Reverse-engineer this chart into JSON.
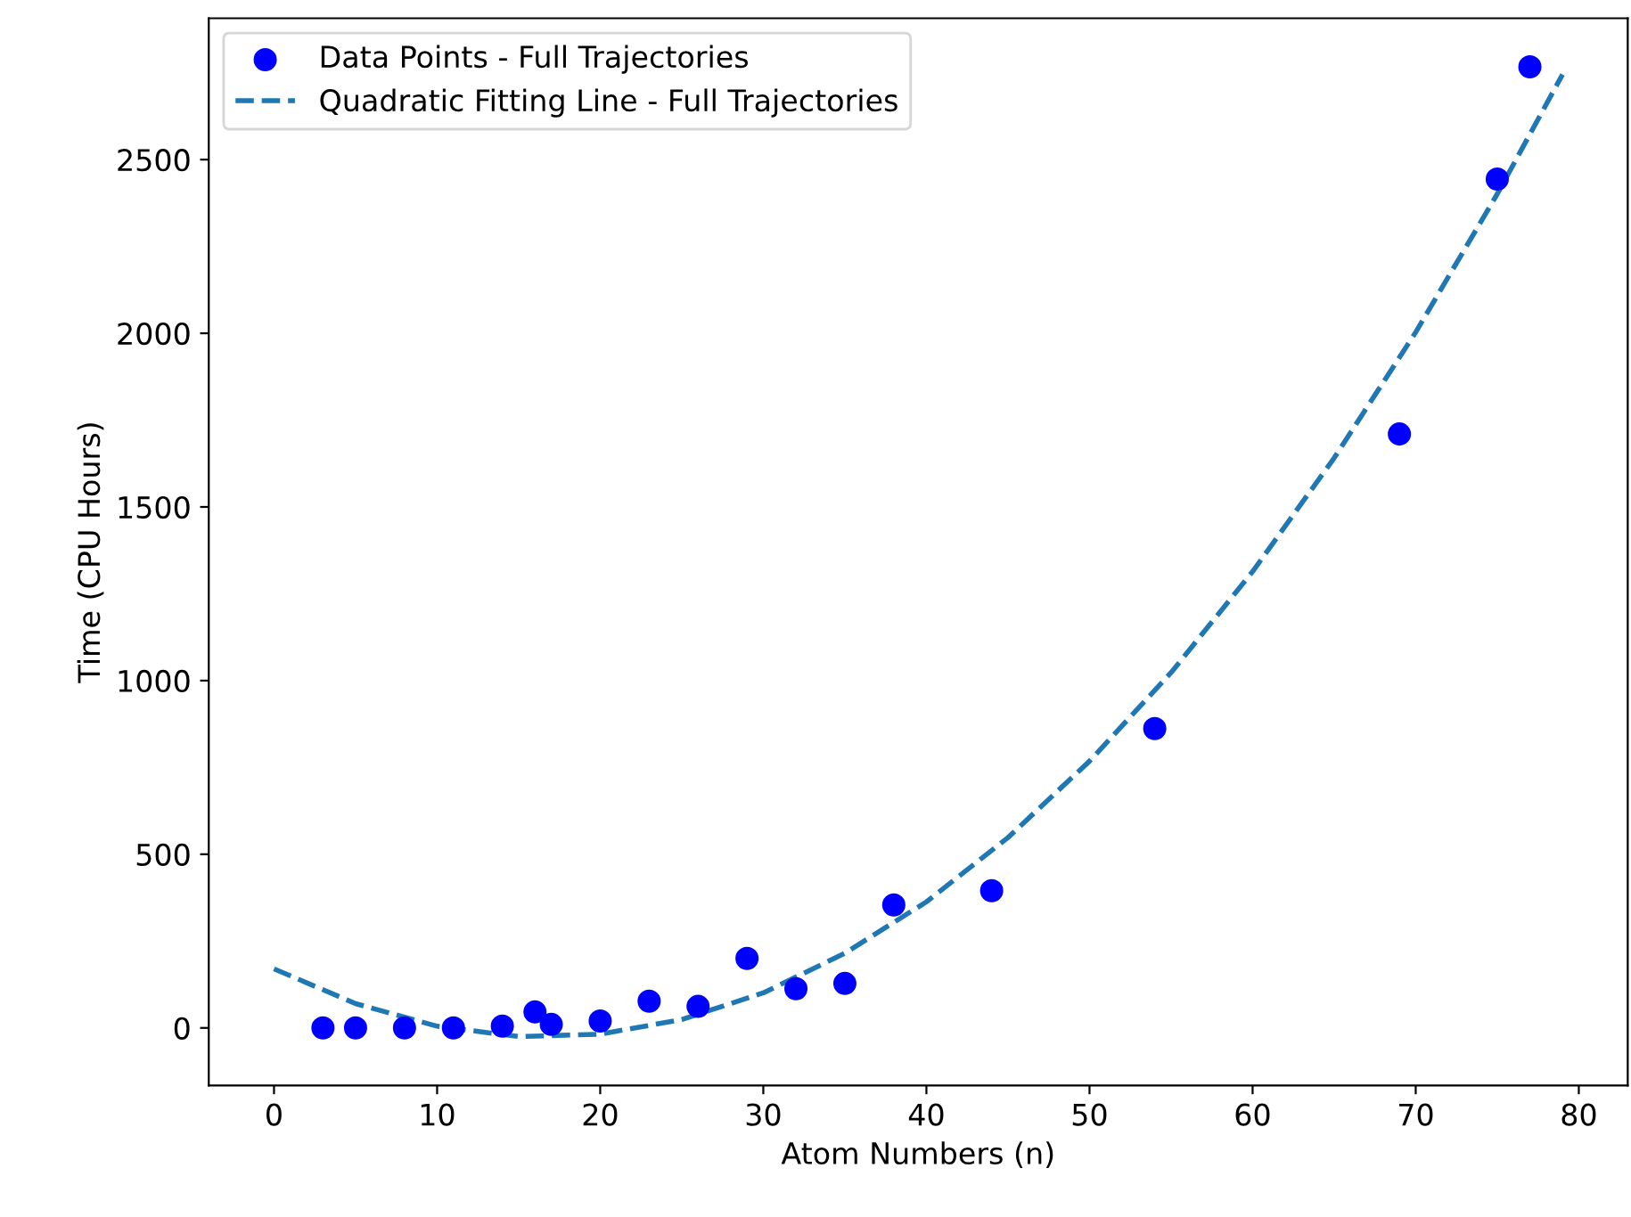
{
  "chart_data": {
    "type": "scatter",
    "xlabel": "Atom Numbers (n)",
    "ylabel": "Time (CPU Hours)",
    "xlim": [
      -4,
      83
    ],
    "ylim": [
      -166,
      2907
    ],
    "xticks": [
      0,
      10,
      20,
      30,
      40,
      50,
      60,
      70,
      80
    ],
    "yticks": [
      0,
      500,
      1000,
      1500,
      2000,
      2500
    ],
    "grid": false,
    "legend": "top left",
    "series": [
      {
        "name": "Data Points - Full Trajectories",
        "color": "#0000ff",
        "marker": "circle",
        "x": [
          3,
          5,
          8,
          11,
          14,
          16,
          17,
          20,
          23,
          26,
          29,
          32,
          35,
          38,
          44,
          54,
          69,
          75,
          77
        ],
        "values": [
          0,
          0,
          0,
          0,
          5,
          46,
          10,
          20,
          77,
          62,
          200,
          113,
          128,
          354,
          395,
          862,
          1710,
          2444,
          2767
        ]
      },
      {
        "name": "Quadratic Fitting Line - Full Trajectories",
        "type": "line",
        "color": "#1f77b4",
        "line_style": "dashed",
        "x": [
          0,
          5,
          10,
          15,
          20,
          25,
          30,
          35,
          40,
          45,
          50,
          55,
          60,
          65,
          70,
          75,
          79
        ],
        "values": [
          170,
          70,
          5,
          -25,
          -18,
          24,
          101,
          215,
          363,
          548,
          768,
          1023,
          1314,
          1641,
          2003,
          2401,
          2745
        ]
      }
    ]
  }
}
